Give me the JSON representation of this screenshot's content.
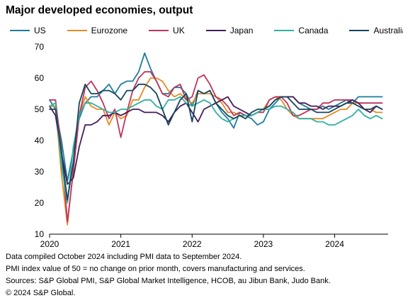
{
  "title": "Major developed economies, output",
  "footnotes": [
    "Data compiled October 2024 including PMI data to September 2024.",
    "PMI index value of 50 = no change on prior month, covers manufacturing and services.",
    "Sources: S&P Global PMI, S&P Global Market Intelligence, HCOB, au Jibun Bank, Judo Bank.",
    "© 2024 S&P Global."
  ],
  "chart_data": {
    "type": "line",
    "title": "Major developed economies, output",
    "xlabel": "",
    "ylabel": "",
    "ylim": [
      10,
      70
    ],
    "yticks": [
      10,
      20,
      30,
      40,
      50,
      60,
      70
    ],
    "xlim": [
      2020.0,
      2024.75
    ],
    "xticks": [
      "2020",
      "2021",
      "2022",
      "2023",
      "2024"
    ],
    "grid": false,
    "legend_position": "top",
    "x_start": "2020-01",
    "x_end": "2024-09",
    "series": [
      {
        "name": "US",
        "color": "#1d7d9a",
        "values": [
          53,
          50,
          40,
          27,
          37,
          47,
          52,
          54,
          54,
          56,
          58,
          55,
          58,
          59,
          59,
          62,
          68,
          63,
          59,
          55,
          55,
          57,
          57,
          55,
          51,
          56,
          55,
          56,
          52,
          49,
          47,
          44,
          49,
          48,
          47,
          45,
          46,
          50,
          52,
          54,
          54,
          54,
          52,
          51,
          50,
          50,
          51,
          50,
          51,
          52,
          53,
          52,
          54,
          54,
          54,
          54,
          54
        ]
      },
      {
        "name": "Eurozone",
        "color": "#e88a24",
        "values": [
          51,
          51,
          29,
          13,
          31,
          48,
          54,
          51,
          50,
          50,
          45,
          49,
          47,
          48,
          53,
          53,
          57,
          60,
          60,
          59,
          56,
          54,
          55,
          53,
          52,
          55,
          55,
          55,
          54,
          52,
          49,
          49,
          48,
          48,
          48,
          49,
          50,
          53,
          54,
          53,
          50,
          48,
          47,
          47,
          47,
          47,
          47,
          48,
          49,
          50,
          50,
          52,
          52,
          50,
          50,
          49,
          49
        ]
      },
      {
        "name": "UK",
        "color": "#c0335d",
        "values": [
          53,
          53,
          37,
          14,
          30,
          48,
          57,
          59,
          56,
          52,
          47,
          50,
          41,
          49,
          56,
          60,
          62,
          62,
          59,
          55,
          54,
          57,
          58,
          53,
          54,
          60,
          61,
          58,
          54,
          53,
          51,
          48,
          49,
          48,
          48,
          49,
          49,
          53,
          54,
          54,
          52,
          48,
          48,
          49,
          50,
          50,
          52,
          52,
          53,
          53,
          53,
          53,
          52,
          52,
          52,
          52,
          52
        ]
      },
      {
        "name": "Japan",
        "color": "#461d59",
        "values": [
          51,
          48,
          36,
          26,
          28,
          38,
          45,
          45,
          46,
          48,
          48,
          49,
          48,
          49,
          50,
          50,
          49,
          49,
          49,
          48,
          46,
          49,
          51,
          52,
          49,
          46,
          50,
          51,
          52,
          53,
          54,
          51,
          50,
          49,
          48,
          49,
          50,
          51,
          53,
          54,
          54,
          54,
          52,
          52,
          51,
          51,
          50,
          51,
          51,
          51,
          52,
          53,
          52,
          50,
          49,
          51,
          50
        ]
      },
      {
        "name": "Canada",
        "color": "#2fb1a2",
        "values": [
          51,
          52,
          32,
          20,
          38,
          48,
          52,
          52,
          51,
          50,
          49,
          49,
          50,
          50,
          51,
          52,
          53,
          53,
          51,
          50,
          53,
          53,
          54,
          52,
          51,
          52,
          53,
          52,
          49,
          47,
          46,
          47,
          48,
          48,
          48,
          49,
          50,
          50,
          51,
          51,
          50,
          49,
          47,
          47,
          47,
          46,
          46,
          45,
          45,
          46,
          47,
          48,
          50,
          48,
          47,
          48,
          47
        ]
      },
      {
        "name": "Australia",
        "color": "#15465e",
        "values": [
          50,
          50,
          36,
          21,
          33,
          52,
          58,
          55,
          55,
          56,
          56,
          55,
          53,
          56,
          56,
          58,
          58,
          57,
          55,
          50,
          45,
          49,
          53,
          55,
          46,
          56,
          55,
          56,
          52,
          50,
          48,
          47,
          48,
          47,
          49,
          50,
          50,
          51,
          53,
          54,
          54,
          52,
          50,
          50,
          50,
          49,
          49,
          49,
          50,
          51,
          52,
          52,
          51,
          50,
          50,
          51,
          50
        ]
      }
    ]
  }
}
